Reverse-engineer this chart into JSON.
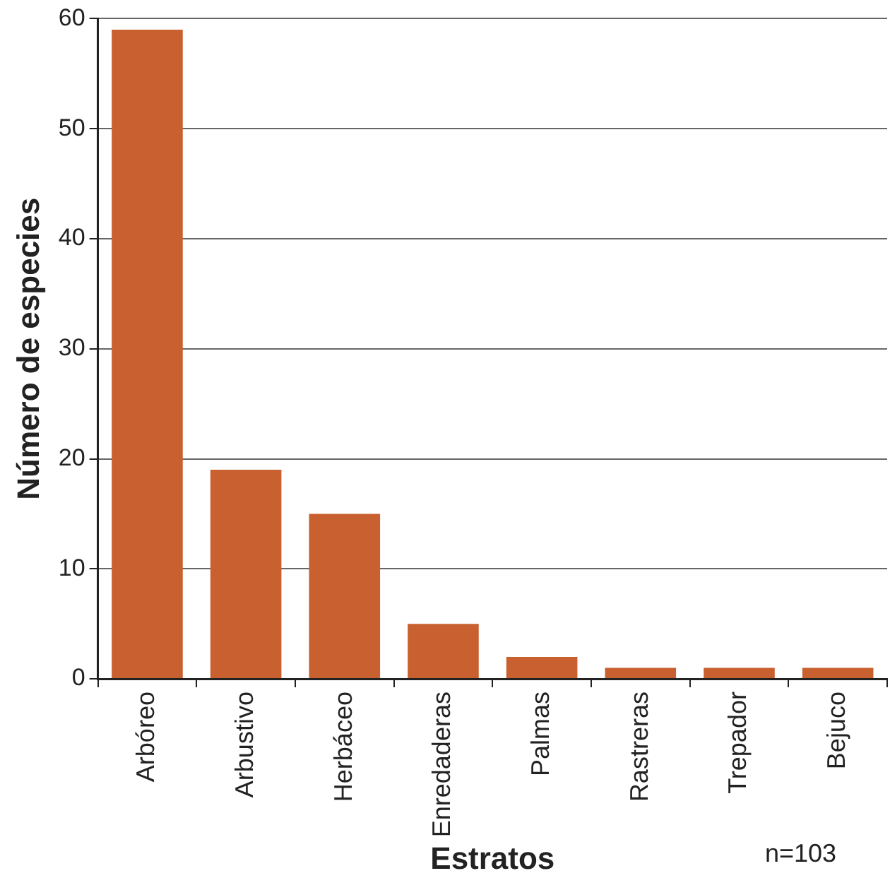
{
  "chart_data": {
    "type": "bar",
    "xlabel": "Estratos",
    "ylabel": "Número de especies",
    "categories": [
      "Arbóreo",
      "Arbustivo",
      "Herbáceo",
      "Enredaderas",
      "Palmas",
      "Rastreras",
      "Trepador",
      "Bejuco"
    ],
    "values": [
      59,
      19,
      15,
      5,
      2,
      1,
      1,
      1
    ],
    "color": "#c8602f",
    "ylim": [
      0,
      60
    ],
    "yticks": [
      0,
      10,
      20,
      30,
      40,
      50,
      60
    ],
    "grid": "y",
    "annotations": [
      "n=103"
    ]
  }
}
